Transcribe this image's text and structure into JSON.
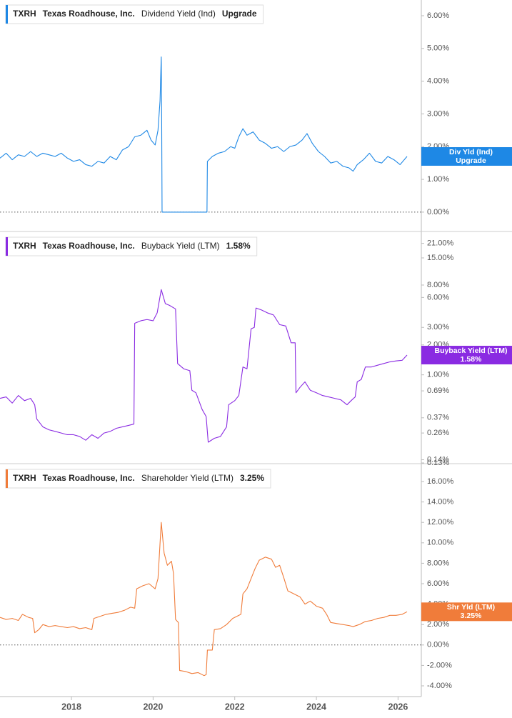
{
  "chart_data": [
    {
      "type": "line",
      "ticker": "TXRH",
      "company": "Texas Roadhouse, Inc.",
      "metric": "Dividend Yield (Ind)",
      "value_label": "Upgrade",
      "badge_label": "Div Yld (Ind)",
      "color": "#1e88e5",
      "zero_line": true,
      "log_scale": false,
      "xlim": [
        2016.25,
        2026.57
      ],
      "ylim": [
        -0.57,
        6.48
      ],
      "yticks": [
        {
          "value": 0,
          "label": "0.00%"
        },
        {
          "value": 1,
          "label": "1.00%"
        },
        {
          "value": 2,
          "label": "2.00%"
        },
        {
          "value": 3,
          "label": "3.00%"
        },
        {
          "value": 4,
          "label": "4.00%"
        },
        {
          "value": 5,
          "label": "5.00%"
        },
        {
          "value": 6,
          "label": "6.00%"
        }
      ],
      "x": [
        2016.25,
        2016.4,
        2016.55,
        2016.7,
        2016.85,
        2017.0,
        2017.15,
        2017.3,
        2017.45,
        2017.6,
        2017.75,
        2017.9,
        2018.05,
        2018.2,
        2018.35,
        2018.5,
        2018.65,
        2018.8,
        2018.95,
        2019.1,
        2019.25,
        2019.4,
        2019.55,
        2019.7,
        2019.85,
        2019.95,
        2020.05,
        2020.12,
        2020.17,
        2020.2,
        2020.21,
        2020.22,
        2021.32,
        2021.33,
        2021.45,
        2021.6,
        2021.75,
        2021.9,
        2022.0,
        2022.1,
        2022.2,
        2022.3,
        2022.45,
        2022.6,
        2022.75,
        2022.9,
        2023.05,
        2023.2,
        2023.35,
        2023.5,
        2023.65,
        2023.77,
        2023.9,
        2024.05,
        2024.2,
        2024.35,
        2024.5,
        2024.65,
        2024.8,
        2024.9,
        2025.0,
        2025.15,
        2025.3,
        2025.45,
        2025.6,
        2025.75,
        2025.9,
        2026.05,
        2026.22
      ],
      "values": [
        1.65,
        1.8,
        1.6,
        1.75,
        1.7,
        1.85,
        1.7,
        1.8,
        1.75,
        1.7,
        1.8,
        1.65,
        1.55,
        1.6,
        1.45,
        1.4,
        1.55,
        1.5,
        1.7,
        1.6,
        1.9,
        2.0,
        2.3,
        2.35,
        2.5,
        2.2,
        2.05,
        2.5,
        3.4,
        4.74,
        2.9,
        0,
        0,
        1.55,
        1.7,
        1.8,
        1.85,
        2.0,
        1.95,
        2.3,
        2.55,
        2.35,
        2.45,
        2.2,
        2.1,
        1.95,
        2.0,
        1.85,
        2.0,
        2.05,
        2.2,
        2.4,
        2.1,
        1.85,
        1.7,
        1.5,
        1.55,
        1.4,
        1.35,
        1.25,
        1.45,
        1.6,
        1.8,
        1.55,
        1.5,
        1.7,
        1.6,
        1.45,
        1.7
      ]
    },
    {
      "type": "line",
      "ticker": "TXRH",
      "company": "Texas Roadhouse, Inc.",
      "metric": "Buyback Yield (LTM)",
      "value_label": "1.58%",
      "badge_label": "Buyback Yield (LTM)",
      "color": "#8a2be2",
      "zero_line": false,
      "log_scale": true,
      "xlim": [
        2016.25,
        2026.57
      ],
      "ylim": [
        0.13,
        27.2
      ],
      "yticks": [
        {
          "value": 0.13,
          "label": "0.13%"
        },
        {
          "value": 0.14,
          "label": "0.14%"
        },
        {
          "value": 0.26,
          "label": "0.26%"
        },
        {
          "value": 0.37,
          "label": "0.37%"
        },
        {
          "value": 0.69,
          "label": "0.69%"
        },
        {
          "value": 1,
          "label": "1.00%"
        },
        {
          "value": 2,
          "label": "2.00%"
        },
        {
          "value": 3,
          "label": "3.00%"
        },
        {
          "value": 6,
          "label": "6.00%"
        },
        {
          "value": 8,
          "label": "8.00%"
        },
        {
          "value": 15,
          "label": "15.00%"
        },
        {
          "value": 21,
          "label": "21.00%"
        }
      ],
      "x": [
        2016.25,
        2016.4,
        2016.55,
        2016.7,
        2016.85,
        2017.0,
        2017.1,
        2017.15,
        2017.3,
        2017.45,
        2017.6,
        2017.75,
        2017.9,
        2018.05,
        2018.2,
        2018.35,
        2018.5,
        2018.65,
        2018.8,
        2018.95,
        2019.1,
        2019.25,
        2019.4,
        2019.53,
        2019.55,
        2019.7,
        2019.85,
        2020.0,
        2020.1,
        2020.2,
        2020.3,
        2020.4,
        2020.55,
        2020.6,
        2020.75,
        2020.9,
        2020.95,
        2021.05,
        2021.2,
        2021.3,
        2021.35,
        2021.5,
        2021.65,
        2021.8,
        2021.85,
        2022.0,
        2022.1,
        2022.2,
        2022.3,
        2022.4,
        2022.48,
        2022.52,
        2022.65,
        2022.8,
        2022.95,
        2023.1,
        2023.25,
        2023.38,
        2023.48,
        2023.5,
        2023.6,
        2023.72,
        2023.85,
        2024.0,
        2024.15,
        2024.3,
        2024.45,
        2024.6,
        2024.75,
        2024.85,
        2024.95,
        2025.0,
        2025.1,
        2025.2,
        2025.35,
        2025.5,
        2025.65,
        2025.8,
        2025.95,
        2026.1,
        2026.22
      ],
      "values": [
        0.58,
        0.6,
        0.52,
        0.62,
        0.55,
        0.58,
        0.5,
        0.36,
        0.3,
        0.28,
        0.27,
        0.26,
        0.25,
        0.25,
        0.24,
        0.22,
        0.25,
        0.23,
        0.26,
        0.27,
        0.29,
        0.3,
        0.31,
        0.32,
        3.3,
        3.5,
        3.6,
        3.5,
        4.2,
        7.2,
        5.2,
        5.0,
        4.6,
        1.3,
        1.15,
        1.1,
        0.7,
        0.66,
        0.45,
        0.38,
        0.21,
        0.23,
        0.24,
        0.3,
        0.5,
        0.55,
        0.62,
        1.2,
        1.15,
        2.9,
        3.0,
        4.7,
        4.5,
        4.2,
        4.0,
        3.2,
        3.1,
        2.1,
        2.1,
        0.66,
        0.75,
        0.85,
        0.7,
        0.66,
        0.62,
        0.6,
        0.58,
        0.56,
        0.5,
        0.55,
        0.6,
        0.85,
        0.9,
        1.2,
        1.2,
        1.25,
        1.3,
        1.35,
        1.38,
        1.4,
        1.58
      ]
    },
    {
      "type": "line",
      "ticker": "TXRH",
      "company": "Texas Roadhouse, Inc.",
      "metric": "Shareholder Yield (LTM)",
      "value_label": "3.25%",
      "badge_label": "Shr Yld (LTM)",
      "color": "#f07c3a",
      "zero_line": true,
      "log_scale": false,
      "xlim": [
        2016.25,
        2026.57
      ],
      "ylim": [
        -5.05,
        17.68
      ],
      "xticks": [
        2018,
        2020,
        2022,
        2024,
        2026
      ],
      "yticks": [
        {
          "value": -4,
          "label": "-4.00%"
        },
        {
          "value": -2,
          "label": "-2.00%"
        },
        {
          "value": 0,
          "label": "0.00%"
        },
        {
          "value": 2,
          "label": "2.00%"
        },
        {
          "value": 4,
          "label": "4.00%"
        },
        {
          "value": 6,
          "label": "6.00%"
        },
        {
          "value": 8,
          "label": "8.00%"
        },
        {
          "value": 10,
          "label": "10.00%"
        },
        {
          "value": 12,
          "label": "12.00%"
        },
        {
          "value": 14,
          "label": "14.00%"
        },
        {
          "value": 16,
          "label": "16.00%"
        }
      ],
      "x": [
        2016.25,
        2016.4,
        2016.55,
        2016.7,
        2016.8,
        2016.95,
        2017.05,
        2017.1,
        2017.2,
        2017.3,
        2017.45,
        2017.6,
        2017.75,
        2017.9,
        2018.05,
        2018.2,
        2018.35,
        2018.5,
        2018.55,
        2018.7,
        2018.85,
        2019.0,
        2019.15,
        2019.3,
        2019.45,
        2019.55,
        2019.6,
        2019.75,
        2019.9,
        2020.05,
        2020.12,
        2020.2,
        2020.27,
        2020.35,
        2020.45,
        2020.5,
        2020.55,
        2020.62,
        2020.65,
        2020.8,
        2020.95,
        2021.1,
        2021.25,
        2021.3,
        2021.33,
        2021.45,
        2021.5,
        2021.65,
        2021.8,
        2021.95,
        2022.05,
        2022.15,
        2022.2,
        2022.3,
        2022.4,
        2022.5,
        2022.6,
        2022.75,
        2022.9,
        2023.0,
        2023.1,
        2023.2,
        2023.3,
        2023.45,
        2023.6,
        2023.72,
        2023.85,
        2024.0,
        2024.15,
        2024.25,
        2024.35,
        2024.5,
        2024.65,
        2024.8,
        2024.9,
        2025.05,
        2025.2,
        2025.35,
        2025.5,
        2025.65,
        2025.8,
        2025.95,
        2026.1,
        2026.22
      ],
      "values": [
        2.7,
        2.5,
        2.6,
        2.4,
        3.0,
        2.7,
        2.6,
        1.2,
        1.5,
        2.0,
        1.8,
        1.9,
        1.8,
        1.7,
        1.8,
        1.6,
        1.7,
        1.5,
        2.6,
        2.8,
        3.0,
        3.1,
        3.2,
        3.4,
        3.7,
        3.6,
        5.5,
        5.8,
        6.0,
        5.5,
        6.5,
        12.0,
        9.0,
        7.8,
        8.2,
        7.0,
        2.5,
        2.2,
        -2.5,
        -2.6,
        -2.8,
        -2.7,
        -3.0,
        -2.9,
        -0.5,
        -0.5,
        1.5,
        1.6,
        2.0,
        2.6,
        2.8,
        3.0,
        5.0,
        5.5,
        6.5,
        7.5,
        8.3,
        8.6,
        8.4,
        7.6,
        7.8,
        6.6,
        5.3,
        5.0,
        4.7,
        4.0,
        4.3,
        3.8,
        3.6,
        3.0,
        2.2,
        2.1,
        2.0,
        1.9,
        1.8,
        2.0,
        2.3,
        2.4,
        2.6,
        2.7,
        2.9,
        2.9,
        3.0,
        3.25
      ]
    }
  ]
}
